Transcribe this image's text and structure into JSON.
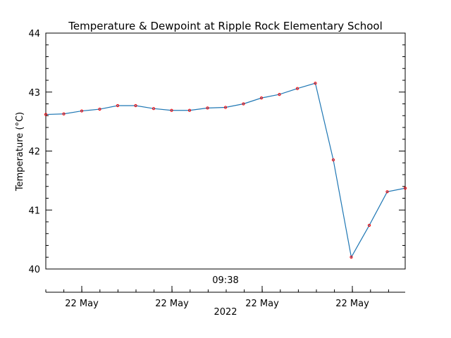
{
  "chart_data": {
    "type": "line",
    "title": "Temperature & Dewpoint at Ripple Rock Elementary School",
    "ylabel": "Temperature (°C)",
    "xlabel_time": "09:38",
    "xlabel_year": "2022",
    "ylim": [
      40,
      44
    ],
    "y_ticks": [
      "40",
      "41",
      "42",
      "43",
      "44"
    ],
    "x_tick_labels": [
      "22 May",
      "22 May",
      "22 May",
      "22 May"
    ],
    "x": [
      0,
      1,
      2,
      3,
      4,
      5,
      6,
      7,
      8,
      9,
      10,
      11,
      12,
      13,
      14,
      15,
      16,
      17,
      18,
      19,
      20
    ],
    "series": [
      {
        "values": [
          42.62,
          42.63,
          42.68,
          42.71,
          42.77,
          42.77,
          42.72,
          42.69,
          42.69,
          42.73,
          42.74,
          42.8,
          42.9,
          42.96,
          43.06,
          43.15,
          41.85,
          40.2,
          40.74,
          41.31,
          41.37
        ]
      }
    ],
    "colors": {
      "line": "#1f77b4",
      "marker": "#ff0000",
      "axis": "#000000"
    },
    "grid": false
  }
}
